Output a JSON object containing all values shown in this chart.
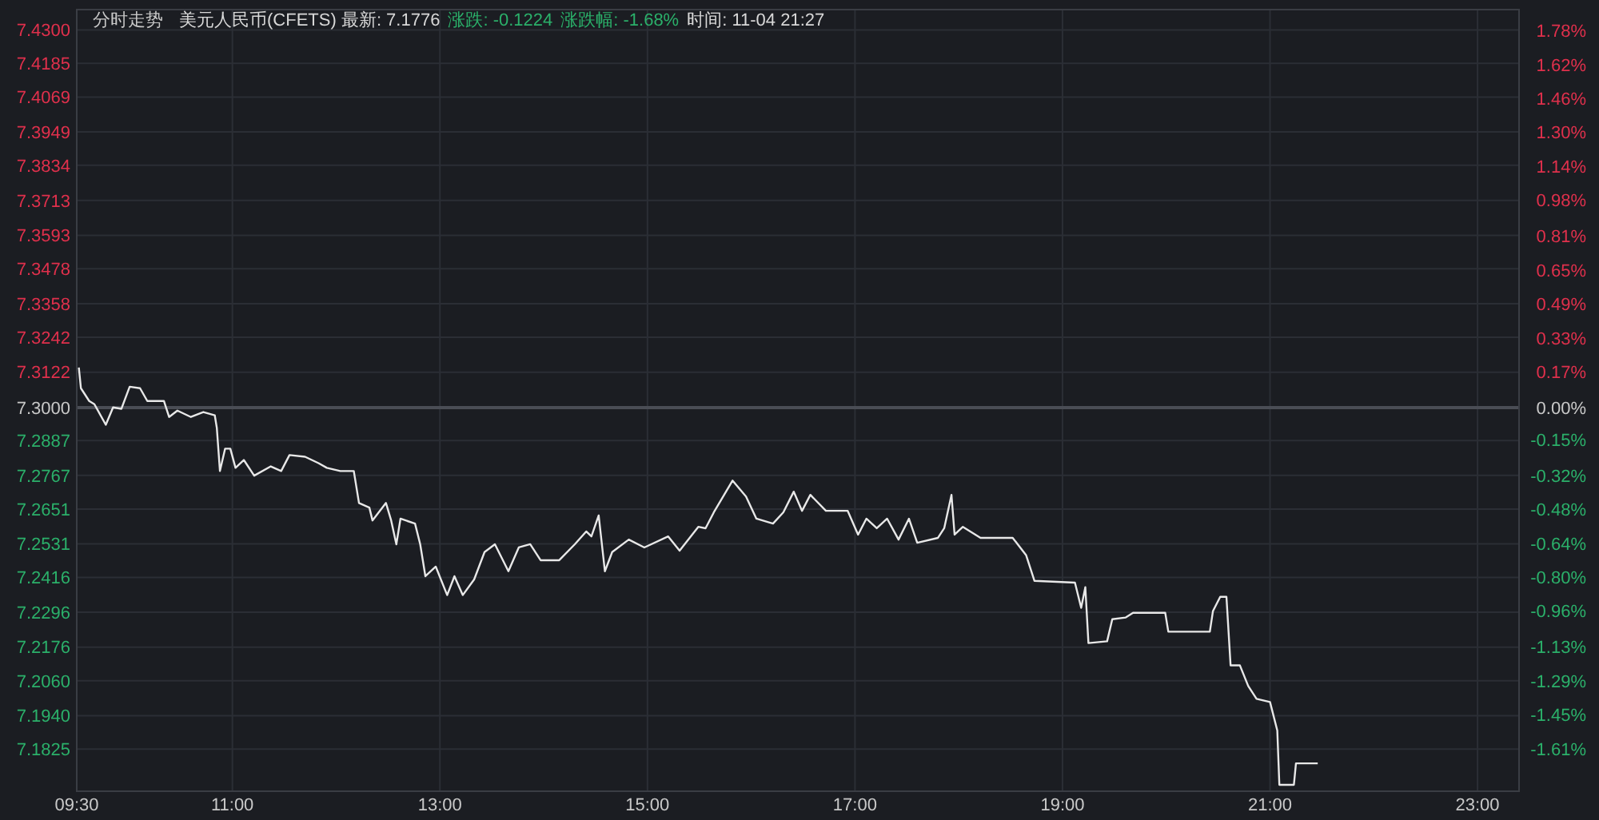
{
  "chart_data": {
    "type": "line",
    "title": "分时走势",
    "annotations": [
      "美元人民币(CFETS) 最新: 7.1776",
      "涨跌: -0.1224",
      "涨跌幅: -1.68%",
      "时间: 11-04 21:27"
    ],
    "x": [
      9.52,
      9.54,
      9.62,
      9.67,
      9.78,
      9.85,
      9.93,
      10.01,
      10.11,
      10.18,
      10.34,
      10.39,
      10.47,
      10.6,
      10.72,
      10.83,
      10.85,
      10.88,
      10.93,
      10.98,
      11.03,
      11.11,
      11.21,
      11.37,
      11.47,
      11.55,
      11.7,
      11.83,
      11.91,
      12.04,
      12.17,
      12.22,
      12.32,
      12.35,
      12.48,
      12.53,
      12.58,
      12.62,
      12.76,
      12.81,
      12.86,
      12.96,
      13.07,
      13.14,
      13.22,
      13.33,
      13.43,
      13.53,
      13.66,
      13.76,
      13.87,
      13.97,
      14.15,
      14.3,
      14.41,
      14.46,
      14.53,
      14.59,
      14.66,
      14.82,
      14.97,
      15.2,
      15.31,
      15.49,
      15.56,
      15.64,
      15.82,
      15.95,
      16.05,
      16.21,
      16.31,
      16.41,
      16.49,
      16.57,
      16.72,
      16.93,
      17.03,
      17.11,
      17.21,
      17.31,
      17.42,
      17.52,
      17.6,
      17.8,
      17.86,
      17.93,
      17.96,
      18.04,
      18.21,
      18.52,
      18.65,
      18.73,
      19.12,
      19.18,
      19.22,
      19.25,
      19.43,
      19.48,
      19.61,
      19.68,
      19.99,
      20.02,
      20.42,
      20.45,
      20.52,
      20.58,
      20.62,
      20.71,
      20.79,
      20.87,
      21.0,
      21.07,
      21.09,
      21.23,
      21.25,
      21.46
    ],
    "series": [
      {
        "color": "#e8e8e8",
        "values": [
          7.3138,
          7.3067,
          7.3023,
          7.3012,
          7.2941,
          7.3001,
          7.2996,
          7.3072,
          7.3067,
          7.3023,
          7.3023,
          7.2968,
          7.299,
          7.2968,
          7.2985,
          7.2974,
          7.293,
          7.2782,
          7.2859,
          7.2859,
          7.2793,
          7.282,
          7.2766,
          7.2798,
          7.2782,
          7.2837,
          7.2831,
          7.2809,
          7.2793,
          7.2782,
          7.2782,
          7.2672,
          7.2656,
          7.2612,
          7.2672,
          7.2612,
          7.253,
          7.2618,
          7.2601,
          7.253,
          7.242,
          7.2453,
          7.2355,
          7.242,
          7.2355,
          7.2409,
          7.2503,
          7.253,
          7.2437,
          7.2519,
          7.253,
          7.2475,
          7.2475,
          7.253,
          7.2574,
          7.2557,
          7.2629,
          7.2437,
          7.2503,
          7.2546,
          7.2519,
          7.2557,
          7.2508,
          7.259,
          7.2585,
          7.264,
          7.2749,
          7.2694,
          7.2618,
          7.2601,
          7.264,
          7.2711,
          7.2645,
          7.27,
          7.2645,
          7.2645,
          7.2563,
          7.2618,
          7.2585,
          7.2618,
          7.2546,
          7.2618,
          7.2535,
          7.2552,
          7.2585,
          7.27,
          7.2563,
          7.259,
          7.2552,
          7.2552,
          7.2492,
          7.2404,
          7.2398,
          7.2311,
          7.2382,
          7.219,
          7.2196,
          7.2272,
          7.2278,
          7.2294,
          7.2294,
          7.2229,
          7.2229,
          7.23,
          7.2349,
          7.2349,
          7.2113,
          7.2113,
          7.2042,
          7.1998,
          7.1987,
          7.1889,
          7.1702,
          7.1702,
          7.1776,
          7.1776
        ]
      }
    ],
    "xlim": [
      9.5,
      23.4
    ],
    "xticks": [
      {
        "value": 9.5,
        "label": "09:30"
      },
      {
        "value": 11,
        "label": "11:00"
      },
      {
        "value": 13,
        "label": "13:00"
      },
      {
        "value": 15,
        "label": "15:00"
      },
      {
        "value": 17,
        "label": "17:00"
      },
      {
        "value": 19,
        "label": "19:00"
      },
      {
        "value": 21,
        "label": "21:00"
      },
      {
        "value": 23,
        "label": "23:00"
      }
    ],
    "ylim": [
      7.168,
      7.437
    ],
    "yticks": [
      {
        "value": 7.43,
        "label": "7.4300"
      },
      {
        "value": 7.4185,
        "label": "7.4185"
      },
      {
        "value": 7.4069,
        "label": "7.4069"
      },
      {
        "value": 7.3949,
        "label": "7.3949"
      },
      {
        "value": 7.3834,
        "label": "7.3834"
      },
      {
        "value": 7.3713,
        "label": "7.3713"
      },
      {
        "value": 7.3593,
        "label": "7.3593"
      },
      {
        "value": 7.3478,
        "label": "7.3478"
      },
      {
        "value": 7.3358,
        "label": "7.3358"
      },
      {
        "value": 7.3242,
        "label": "7.3242"
      },
      {
        "value": 7.3122,
        "label": "7.3122"
      },
      {
        "value": 7.3,
        "label": "7.3000"
      },
      {
        "value": 7.2887,
        "label": "7.2887"
      },
      {
        "value": 7.2767,
        "label": "7.2767"
      },
      {
        "value": 7.2651,
        "label": "7.2651"
      },
      {
        "value": 7.2531,
        "label": "7.2531"
      },
      {
        "value": 7.2416,
        "label": "7.2416"
      },
      {
        "value": 7.2296,
        "label": "7.2296"
      },
      {
        "value": 7.2176,
        "label": "7.2176"
      },
      {
        "value": 7.206,
        "label": "7.2060"
      },
      {
        "value": 7.194,
        "label": "7.1940"
      },
      {
        "value": 7.1825,
        "label": "7.1825"
      }
    ],
    "y2lim": [
      -1.81,
      1.88
    ],
    "y2ticks": [
      {
        "value": 1.78,
        "label": "1.78%"
      },
      {
        "value": 1.62,
        "label": "1.62%"
      },
      {
        "value": 1.46,
        "label": "1.46%"
      },
      {
        "value": 1.3,
        "label": "1.30%"
      },
      {
        "value": 1.14,
        "label": "1.14%"
      },
      {
        "value": 0.98,
        "label": "0.98%"
      },
      {
        "value": 0.81,
        "label": "0.81%"
      },
      {
        "value": 0.65,
        "label": "0.65%"
      },
      {
        "value": 0.49,
        "label": "0.49%"
      },
      {
        "value": 0.33,
        "label": "0.33%"
      },
      {
        "value": 0.17,
        "label": "0.17%"
      },
      {
        "value": 0,
        "label": "0.00%"
      },
      {
        "value": -0.15,
        "label": "-0.15%"
      },
      {
        "value": -0.32,
        "label": "-0.32%"
      },
      {
        "value": -0.48,
        "label": "-0.48%"
      },
      {
        "value": -0.64,
        "label": "-0.64%"
      },
      {
        "value": -0.8,
        "label": "-0.80%"
      },
      {
        "value": -0.96,
        "label": "-0.96%"
      },
      {
        "value": -1.13,
        "label": "-1.13%"
      },
      {
        "value": -1.29,
        "label": "-1.29%"
      },
      {
        "value": -1.45,
        "label": "-1.45%"
      },
      {
        "value": -1.61,
        "label": "-1.61%"
      }
    ],
    "ref_lines": [
      {
        "axis": "y",
        "value": 7.3,
        "color": "#4a4d55"
      }
    ],
    "grid": true
  }
}
